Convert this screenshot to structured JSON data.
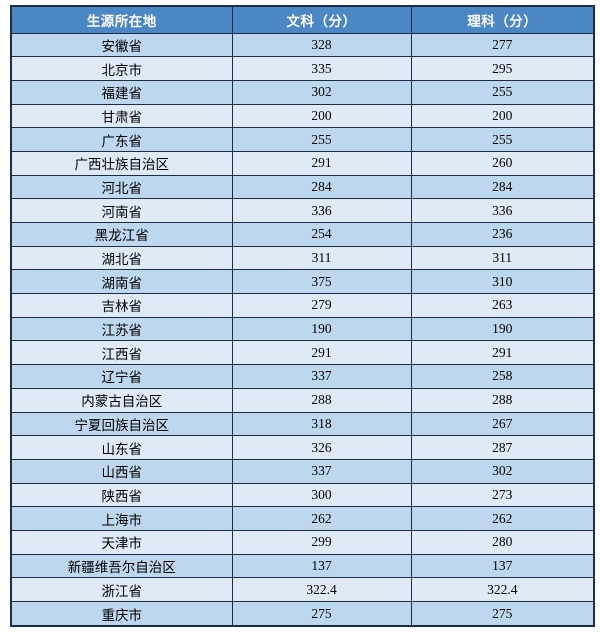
{
  "chart_data": {
    "type": "table",
    "columns": [
      "生源所在地",
      "文科（分）",
      "理科（分）"
    ],
    "rows": [
      [
        "安徽省",
        "328",
        "277"
      ],
      [
        "北京市",
        "335",
        "295"
      ],
      [
        "福建省",
        "302",
        "255"
      ],
      [
        "甘肃省",
        "200",
        "200"
      ],
      [
        "广东省",
        "255",
        "255"
      ],
      [
        "广西壮族自治区",
        "291",
        "260"
      ],
      [
        "河北省",
        "284",
        "284"
      ],
      [
        "河南省",
        "336",
        "336"
      ],
      [
        "黑龙江省",
        "254",
        "236"
      ],
      [
        "湖北省",
        "311",
        "311"
      ],
      [
        "湖南省",
        "375",
        "310"
      ],
      [
        "吉林省",
        "279",
        "263"
      ],
      [
        "江苏省",
        "190",
        "190"
      ],
      [
        "江西省",
        "291",
        "291"
      ],
      [
        "辽宁省",
        "337",
        "258"
      ],
      [
        "内蒙古自治区",
        "288",
        "288"
      ],
      [
        "宁夏回族自治区",
        "318",
        "267"
      ],
      [
        "山东省",
        "326",
        "287"
      ],
      [
        "山西省",
        "337",
        "302"
      ],
      [
        "陕西省",
        "300",
        "273"
      ],
      [
        "上海市",
        "262",
        "262"
      ],
      [
        "天津市",
        "299",
        "280"
      ],
      [
        "新疆维吾尔自治区",
        "137",
        "137"
      ],
      [
        "浙江省",
        "322.4",
        "322.4"
      ],
      [
        "重庆市",
        "275",
        "275"
      ]
    ]
  },
  "colors": {
    "header_bg": "#4B86C5",
    "header_text": "#FFFFFF",
    "row_odd_bg": "#BDD7EE",
    "row_even_bg": "#DEEBF7",
    "border": "#1E2D44",
    "cell_text": "#000000"
  }
}
